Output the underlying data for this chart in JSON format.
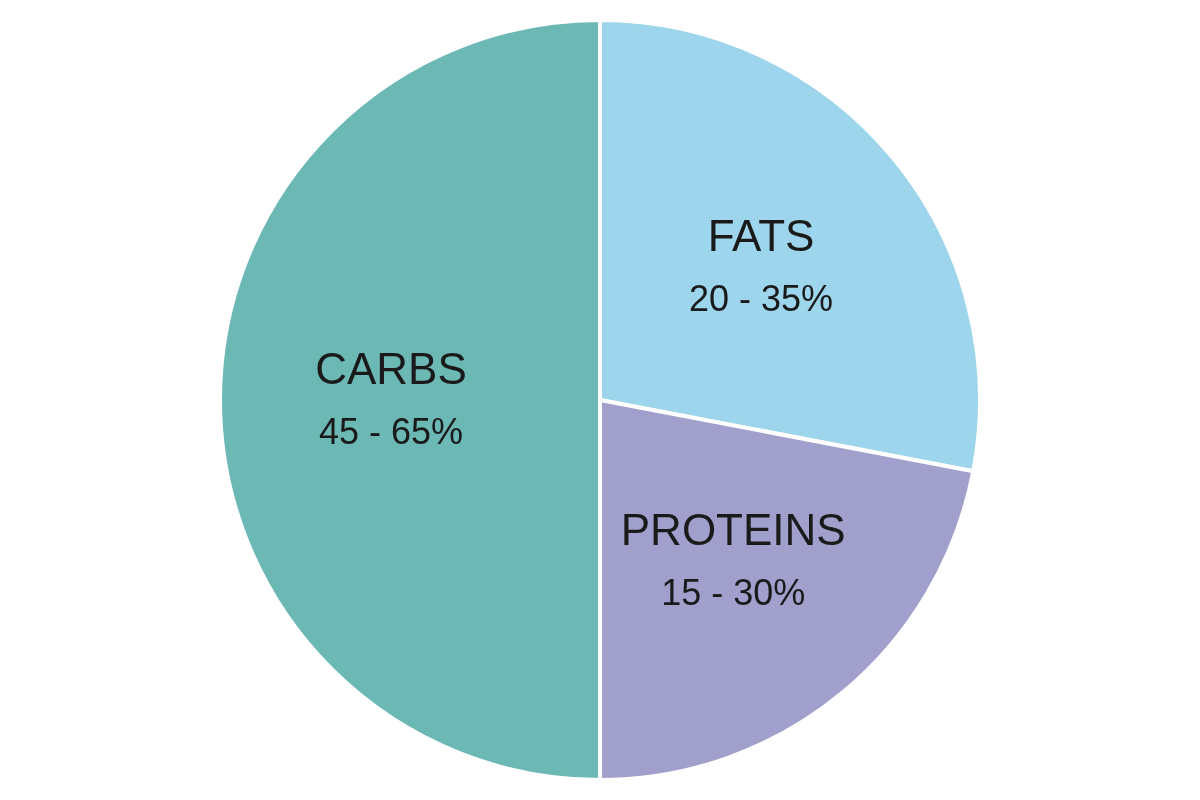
{
  "chart_data": {
    "type": "pie",
    "categories": [
      "FATS",
      "PROTEINS",
      "CARBS"
    ],
    "values": [
      28,
      22,
      50
    ],
    "colors": [
      "#9dd5ec",
      "#a1a0cd",
      "#6bb8b5"
    ],
    "annotations": [
      {
        "text": "20 - 35%",
        "x": "FATS"
      },
      {
        "text": "15 - 30%",
        "x": "PROTEINS"
      },
      {
        "text": "45 - 65%",
        "x": "CARBS"
      }
    ],
    "legend": false
  }
}
